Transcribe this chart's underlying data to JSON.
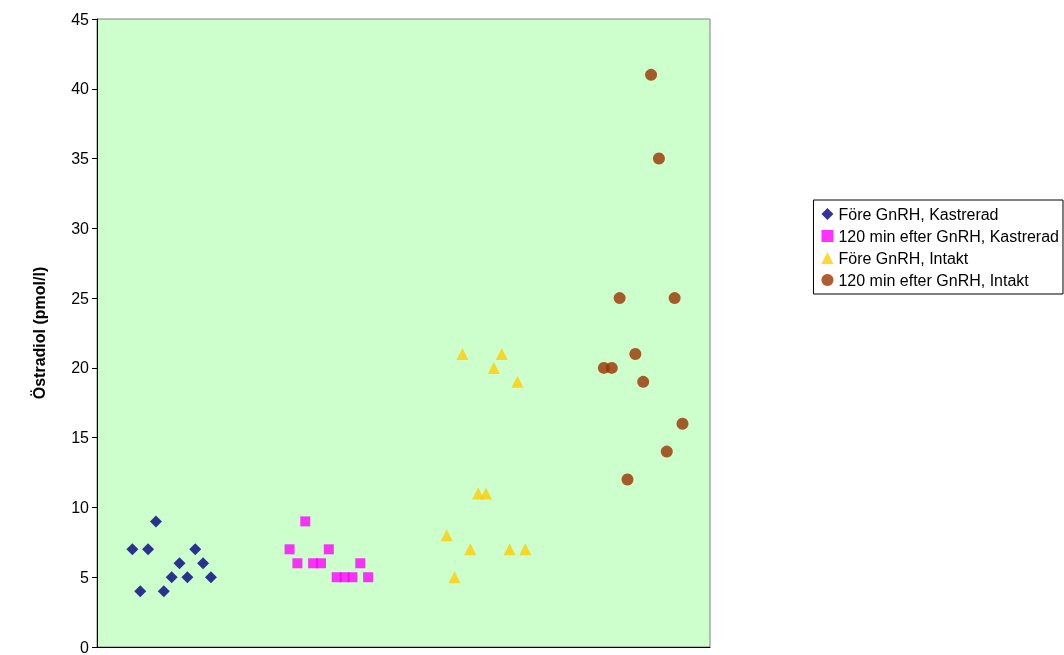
{
  "chart_data": {
    "type": "scatter",
    "ylabel": "Östradiol (pmol/l)",
    "ylim": [
      0,
      45
    ],
    "yticks": [
      0,
      5,
      10,
      15,
      20,
      25,
      30,
      35,
      40,
      45
    ],
    "grid": false,
    "legend": "right",
    "tick_labels": "y",
    "categories": [
      null,
      null,
      null,
      null,
      null,
      null,
      null,
      null,
      null,
      null,
      null,
      null,
      null,
      null,
      null,
      null,
      null,
      null,
      null,
      null,
      null,
      null,
      null,
      null,
      null,
      null,
      null,
      null,
      null,
      null,
      null,
      null,
      null,
      null,
      null,
      null,
      null,
      null,
      null,
      null,
      null,
      null,
      null,
      null,
      null,
      null,
      null,
      null,
      null,
      null,
      null,
      null,
      null,
      null,
      null,
      null,
      null,
      null,
      null,
      null,
      null,
      null,
      null,
      null,
      null,
      null,
      null,
      null,
      null,
      null,
      null,
      null,
      null,
      null,
      null,
      null,
      null,
      null
    ],
    "series": [
      {
        "name": "Före GnRH, Kastrerad",
        "color": "#000080",
        "marker": "diamond",
        "values": [
          null,
          null,
          null,
          null,
          7,
          4,
          7,
          9,
          4,
          5,
          6,
          5,
          7,
          6,
          5,
          null,
          null,
          null,
          null,
          null,
          null,
          null,
          null,
          null,
          null,
          null,
          null,
          null,
          null,
          null,
          null,
          null,
          null,
          null,
          null,
          null,
          null,
          null,
          null,
          null,
          null,
          null,
          null,
          null,
          null,
          null,
          null,
          null,
          null,
          null,
          null,
          null,
          null,
          null,
          null,
          null,
          null,
          null,
          null,
          null,
          null,
          null,
          null,
          null,
          null,
          null,
          null,
          null,
          null,
          null,
          null,
          null,
          null,
          null,
          null,
          null,
          null,
          null
        ]
      },
      {
        "name": "120 min efter GnRH, Kastrerad",
        "color": "#ff00ff",
        "marker": "square",
        "values": [
          null,
          null,
          null,
          null,
          null,
          null,
          null,
          null,
          null,
          null,
          null,
          null,
          null,
          null,
          null,
          null,
          null,
          null,
          null,
          null,
          null,
          null,
          null,
          null,
          7,
          6,
          9,
          6,
          6,
          7,
          5,
          5,
          5,
          6,
          5,
          null,
          null,
          null,
          null,
          null,
          null,
          null,
          null,
          null,
          null,
          null,
          null,
          null,
          null,
          null,
          null,
          null,
          null,
          null,
          null,
          null,
          null,
          null,
          null,
          null,
          null,
          null,
          null,
          null,
          null,
          null,
          null,
          null,
          null,
          null,
          null,
          null,
          null,
          null,
          null,
          null,
          null,
          null
        ]
      },
      {
        "name": "Före GnRH, Intakt",
        "color": "#ffcc00",
        "marker": "triangle",
        "values": [
          null,
          null,
          null,
          null,
          null,
          null,
          null,
          null,
          null,
          null,
          null,
          null,
          null,
          null,
          null,
          null,
          null,
          null,
          null,
          null,
          null,
          null,
          null,
          null,
          null,
          null,
          null,
          null,
          null,
          null,
          null,
          null,
          null,
          null,
          null,
          null,
          null,
          null,
          null,
          null,
          null,
          null,
          null,
          null,
          8,
          5,
          21,
          7,
          11,
          11,
          20,
          21,
          7,
          19,
          7,
          null,
          null,
          null,
          null,
          null,
          null,
          null,
          null,
          null,
          null,
          null,
          null,
          null,
          null,
          null,
          null,
          null,
          null,
          null,
          null,
          null,
          null,
          null
        ]
      },
      {
        "name": "120 min efter GnRH, Intakt",
        "color": "#993300",
        "marker": "circle",
        "values": [
          null,
          null,
          null,
          null,
          null,
          null,
          null,
          null,
          null,
          null,
          null,
          null,
          null,
          null,
          null,
          null,
          null,
          null,
          null,
          null,
          null,
          null,
          null,
          null,
          null,
          null,
          null,
          null,
          null,
          null,
          null,
          null,
          null,
          null,
          null,
          null,
          null,
          null,
          null,
          null,
          null,
          null,
          null,
          null,
          null,
          null,
          null,
          null,
          null,
          null,
          null,
          null,
          null,
          null,
          null,
          null,
          null,
          null,
          null,
          null,
          null,
          null,
          null,
          null,
          20,
          20,
          25,
          12,
          21,
          19,
          41,
          35,
          14,
          25,
          16,
          null,
          null,
          null
        ]
      }
    ]
  }
}
